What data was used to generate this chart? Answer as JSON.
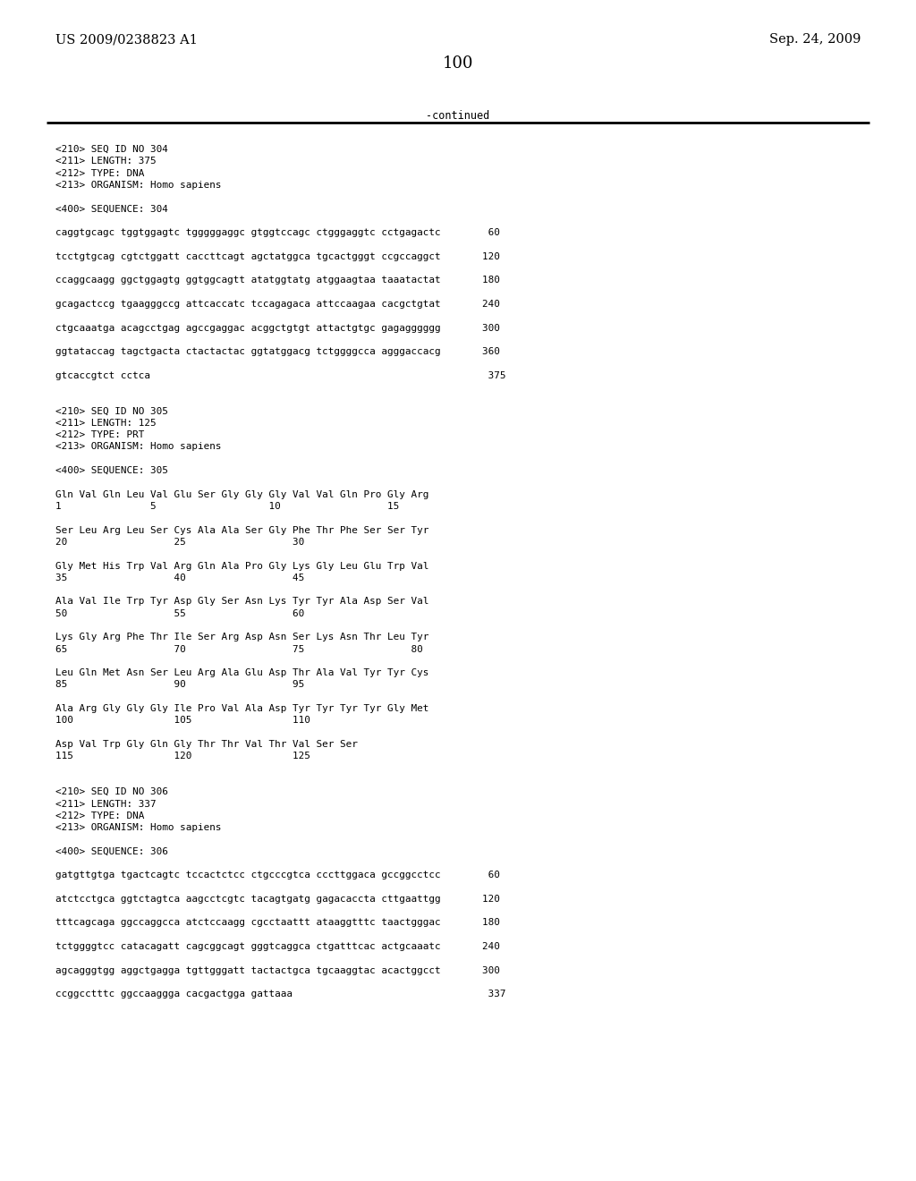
{
  "header_left": "US 2009/0238823 A1",
  "header_right": "Sep. 24, 2009",
  "page_number": "100",
  "continued_label": "-continued",
  "background_color": "#ffffff",
  "text_color": "#000000",
  "lines": [
    "<210> SEQ ID NO 304",
    "<211> LENGTH: 375",
    "<212> TYPE: DNA",
    "<213> ORGANISM: Homo sapiens",
    "",
    "<400> SEQUENCE: 304",
    "",
    "caggtgcagc tggtggagtc tgggggaggc gtggtccagc ctgggaggtc cctgagactc        60",
    "",
    "tcctgtgcag cgtctggatt caccttcagt agctatggca tgcactgggt ccgccaggct       120",
    "",
    "ccaggcaagg ggctggagtg ggtggcagtt atatggtatg atggaagtaa taaatactat       180",
    "",
    "gcagactccg tgaagggccg attcaccatc tccagagaca attccaagaa cacgctgtat       240",
    "",
    "ctgcaaatga acagcctgag agccgaggac acggctgtgt attactgtgc gagagggggg       300",
    "",
    "ggtataccag tagctgacta ctactactac ggtatggacg tctggggcca agggaccacg       360",
    "",
    "gtcaccgtct cctca                                                         375",
    "",
    "",
    "<210> SEQ ID NO 305",
    "<211> LENGTH: 125",
    "<212> TYPE: PRT",
    "<213> ORGANISM: Homo sapiens",
    "",
    "<400> SEQUENCE: 305",
    "",
    "Gln Val Gln Leu Val Glu Ser Gly Gly Gly Val Val Gln Pro Gly Arg",
    "1               5                   10                  15",
    "",
    "Ser Leu Arg Leu Ser Cys Ala Ala Ser Gly Phe Thr Phe Ser Ser Tyr",
    "20                  25                  30",
    "",
    "Gly Met His Trp Val Arg Gln Ala Pro Gly Lys Gly Leu Glu Trp Val",
    "35                  40                  45",
    "",
    "Ala Val Ile Trp Tyr Asp Gly Ser Asn Lys Tyr Tyr Ala Asp Ser Val",
    "50                  55                  60",
    "",
    "Lys Gly Arg Phe Thr Ile Ser Arg Asp Asn Ser Lys Asn Thr Leu Tyr",
    "65                  70                  75                  80",
    "",
    "Leu Gln Met Asn Ser Leu Arg Ala Glu Asp Thr Ala Val Tyr Tyr Cys",
    "85                  90                  95",
    "",
    "Ala Arg Gly Gly Gly Ile Pro Val Ala Asp Tyr Tyr Tyr Tyr Gly Met",
    "100                 105                 110",
    "",
    "Asp Val Trp Gly Gln Gly Thr Thr Val Thr Val Ser Ser",
    "115                 120                 125",
    "",
    "",
    "<210> SEQ ID NO 306",
    "<211> LENGTH: 337",
    "<212> TYPE: DNA",
    "<213> ORGANISM: Homo sapiens",
    "",
    "<400> SEQUENCE: 306",
    "",
    "gatgttgtga tgactcagtc tccactctcc ctgcccgtca cccttggaca gccggcctcc        60",
    "",
    "atctcctgca ggtctagtca aagcctcgtc tacagtgatg gagacaccta cttgaattgg       120",
    "",
    "tttcagcaga ggccaggcca atctccaagg cgcctaattt ataaggtttc taactgggac       180",
    "",
    "tctggggtcc catacagatt cagcggcagt gggtcaggca ctgatttcac actgcaaatc       240",
    "",
    "agcagggtgg aggctgagga tgttgggatt tactactgca tgcaaggtac acactggcct       300",
    "",
    "ccggcctttc ggccaaggga cacgactgga gattaaa                                 337"
  ]
}
